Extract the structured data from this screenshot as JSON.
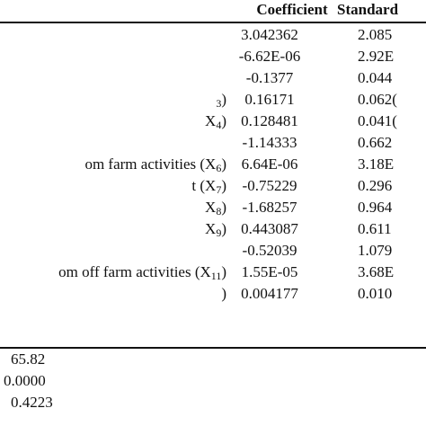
{
  "header": {
    "coefficient": "Coefficient",
    "standard_error": "Standard"
  },
  "rows": [
    {
      "label": "",
      "coef": "3.042362",
      "se": "2.085"
    },
    {
      "label": "",
      "coef": "-6.62E-06",
      "se": "2.92E"
    },
    {
      "label": "",
      "coef": "-0.1377",
      "se": "0.044"
    },
    {
      "label": "3)",
      "coef": "0.16171",
      "se": "0.062("
    },
    {
      "label": "X4)",
      "coef": "0.128481",
      "se": "0.041("
    },
    {
      "label": "",
      "coef": "-1.14333",
      "se": "0.662"
    },
    {
      "label": "om farm activities (X6)",
      "coef": "6.64E-06",
      "se": "3.18E"
    },
    {
      "label": "t (X7)",
      "coef": "-0.75229",
      "se": "0.296"
    },
    {
      "label": "X8)",
      "coef": "-1.68257",
      "se": "0.964"
    },
    {
      "label": "X9)",
      "coef": "0.443087",
      "se": "0.611"
    },
    {
      "label": "",
      "coef": "-0.52039",
      "se": "1.079"
    },
    {
      "label": "om off farm activities (X11)",
      "coef": "1.55E-05",
      "se": "3.68E"
    },
    {
      "label": ")",
      "coef": "0.004177",
      "se": "0.010"
    }
  ],
  "stats": {
    "chi2": "65.82",
    "prob": "0.0000",
    "pseudo_r2": "0.4223"
  }
}
